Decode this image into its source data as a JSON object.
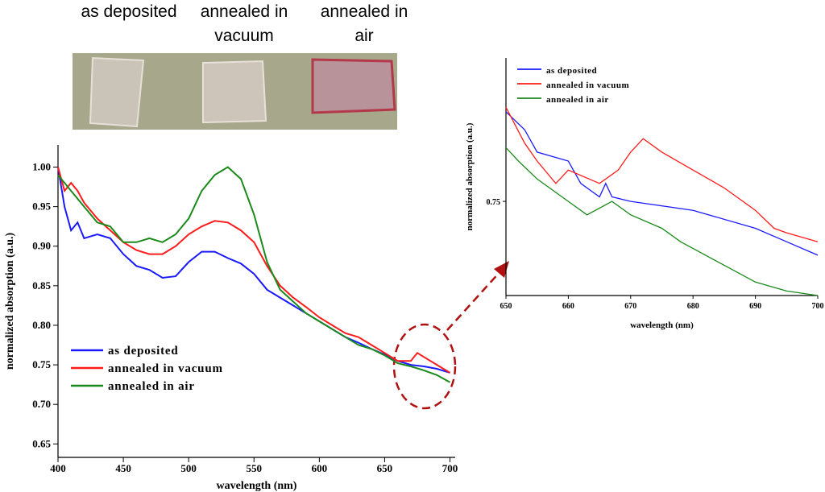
{
  "photo_labels": [
    "as deposited",
    "annealed in vacuum",
    "annealed in air"
  ],
  "chart_data": [
    {
      "type": "line",
      "xlabel": "wavelength (nm)",
      "ylabel": "normalized absorption (a.u.)",
      "xlim": [
        400,
        704
      ],
      "ylim": [
        0.633,
        1.028
      ],
      "xticks": [
        400,
        450,
        500,
        550,
        600,
        650,
        700
      ],
      "yticks": [
        0.65,
        {
          "value": 0.7,
          "label": "0.70"
        },
        0.75,
        {
          "value": 0.8,
          "label": "0.80"
        },
        0.85,
        {
          "value": 0.9,
          "label": "0.90"
        },
        0.95,
        {
          "value": 1.0,
          "label": "1.00"
        }
      ],
      "legend": "lower-left",
      "series": [
        {
          "name": "as deposited",
          "color": "#1a1aff",
          "x": [
            400,
            405,
            410,
            415,
            420,
            430,
            440,
            450,
            460,
            470,
            480,
            490,
            500,
            510,
            520,
            530,
            540,
            550,
            560,
            570,
            580,
            590,
            600,
            610,
            620,
            630,
            640,
            650,
            660,
            670,
            680,
            690,
            700
          ],
          "values": [
            1.0,
            0.95,
            0.92,
            0.93,
            0.91,
            0.915,
            0.91,
            0.89,
            0.875,
            0.87,
            0.86,
            0.862,
            0.88,
            0.893,
            0.893,
            0.885,
            0.878,
            0.865,
            0.845,
            0.835,
            0.825,
            0.815,
            0.805,
            0.795,
            0.785,
            0.778,
            0.77,
            0.763,
            0.755,
            0.75,
            0.748,
            0.745,
            0.74
          ]
        },
        {
          "name": "annealed in vacuum",
          "color": "#ff1a1a",
          "x": [
            400,
            405,
            410,
            415,
            420,
            430,
            440,
            450,
            460,
            470,
            480,
            490,
            500,
            510,
            520,
            530,
            540,
            550,
            560,
            570,
            580,
            590,
            600,
            610,
            620,
            630,
            640,
            650,
            660,
            670,
            675,
            680,
            690,
            700
          ],
          "values": [
            1.0,
            0.97,
            0.98,
            0.97,
            0.955,
            0.935,
            0.92,
            0.905,
            0.895,
            0.89,
            0.89,
            0.9,
            0.915,
            0.925,
            0.932,
            0.93,
            0.92,
            0.905,
            0.875,
            0.85,
            0.835,
            0.823,
            0.81,
            0.8,
            0.79,
            0.785,
            0.775,
            0.765,
            0.755,
            0.755,
            0.765,
            0.76,
            0.75,
            0.74
          ]
        },
        {
          "name": "annealed in air",
          "color": "#1a8a1a",
          "x": [
            400,
            410,
            420,
            430,
            440,
            450,
            460,
            470,
            480,
            490,
            500,
            510,
            520,
            530,
            540,
            550,
            560,
            570,
            580,
            590,
            600,
            610,
            620,
            630,
            640,
            650,
            660,
            670,
            680,
            690,
            700
          ],
          "values": [
            0.99,
            0.97,
            0.95,
            0.93,
            0.925,
            0.905,
            0.905,
            0.91,
            0.905,
            0.915,
            0.935,
            0.97,
            0.99,
            1.0,
            0.985,
            0.94,
            0.88,
            0.845,
            0.83,
            0.815,
            0.805,
            0.795,
            0.785,
            0.775,
            0.77,
            0.762,
            0.752,
            0.748,
            0.743,
            0.737,
            0.728
          ]
        }
      ]
    },
    {
      "type": "line",
      "xlabel": "wavelength (nm)",
      "ylabel": "normalized absorption (a.u.)",
      "xlim": [
        650,
        700
      ],
      "ylim": [
        0.729,
        0.782
      ],
      "xticks": [
        650,
        660,
        670,
        680,
        690,
        700
      ],
      "yticks": [
        0.75
      ],
      "legend": "upper-left",
      "series": [
        {
          "name": "as deposited",
          "color": "#1a1aff",
          "x": [
            650,
            653,
            655,
            660,
            662,
            665,
            666,
            667,
            670,
            680,
            690,
            695,
            700
          ],
          "values": [
            0.77,
            0.766,
            0.761,
            0.759,
            0.754,
            0.751,
            0.754,
            0.751,
            0.75,
            0.748,
            0.744,
            0.741,
            0.738
          ]
        },
        {
          "name": "annealed in vacuum",
          "color": "#ff1a1a",
          "x": [
            650,
            653,
            655,
            658,
            660,
            665,
            668,
            670,
            672,
            675,
            680,
            685,
            690,
            693,
            695,
            700
          ],
          "values": [
            0.771,
            0.763,
            0.759,
            0.754,
            0.757,
            0.754,
            0.757,
            0.761,
            0.764,
            0.761,
            0.757,
            0.753,
            0.748,
            0.744,
            0.743,
            0.741
          ]
        },
        {
          "name": "annealed in air",
          "color": "#1a8a1a",
          "x": [
            650,
            652,
            655,
            660,
            663,
            667,
            670,
            675,
            678,
            682,
            686,
            690,
            695,
            700
          ],
          "values": [
            0.762,
            0.759,
            0.755,
            0.75,
            0.747,
            0.75,
            0.747,
            0.744,
            0.741,
            0.738,
            0.735,
            0.732,
            0.73,
            0.729
          ]
        }
      ]
    }
  ]
}
